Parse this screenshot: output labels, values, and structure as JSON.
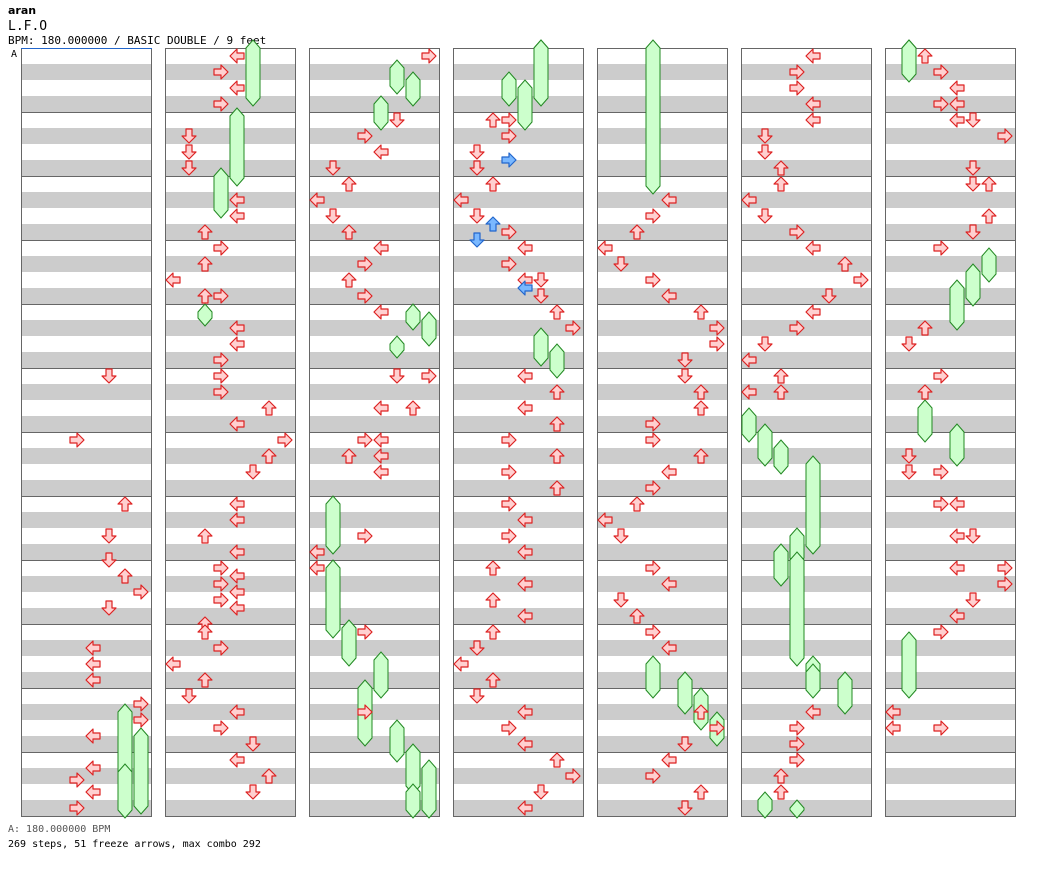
{
  "header": {
    "author": "aran",
    "title": "L.F.O",
    "info": "BPM: 180.000000 / BASIC DOUBLE / 9 feet",
    "marker": "A"
  },
  "footer": {
    "bpm_line": "A: 180.000000 BPM",
    "stats": "269 steps, 51 freeze arrows, max combo 292"
  },
  "colors": {
    "band_gray": "#cccccc",
    "arrow_fill": "#ffd0d0",
    "arrow_stroke": "#dd2222",
    "blue_fill": "#7ab8ff",
    "blue_stroke": "#2266cc",
    "freeze_fill": "#ccffcc",
    "freeze_stroke": "#228822",
    "bpm_line": "#2266cc"
  },
  "chart_data": {
    "type": "step_chart",
    "columns": 7,
    "measures_per_column": 12,
    "lanes": [
      "P1-left",
      "P1-down",
      "P1-up",
      "P1-right",
      "P2-left",
      "P2-down",
      "P2-up",
      "P2-right"
    ],
    "freezes": [
      [
        0,
        41.5,
        46.25
      ],
      [
        0,
        43,
        47.75
      ],
      [
        0,
        45.25,
        48
      ],
      [
        1,
        0,
        3.5
      ],
      [
        1,
        4.25,
        8.5
      ],
      [
        1,
        8,
        10.5
      ],
      [
        1,
        16.5,
        17.25
      ],
      [
        2,
        1.25,
        2.75
      ],
      [
        2,
        2,
        3.5
      ],
      [
        2,
        3.5,
        5
      ],
      [
        2,
        16.5,
        17.5
      ],
      [
        2,
        17,
        18.5
      ],
      [
        2,
        18.5,
        19.25
      ],
      [
        2,
        28.5,
        31.5
      ],
      [
        2,
        32.5,
        36.75
      ],
      [
        2,
        36.25,
        38.5
      ],
      [
        2,
        38.25,
        40.5
      ],
      [
        2,
        40,
        43.5
      ],
      [
        2,
        42.5,
        44.5
      ],
      [
        2,
        44,
        46.5
      ],
      [
        2,
        45,
        48
      ],
      [
        2,
        46.5,
        48
      ],
      [
        3,
        0,
        1
      ],
      [
        3,
        0,
        3.5
      ],
      [
        3,
        2,
        3.5
      ],
      [
        3,
        2.5,
        5
      ],
      [
        3,
        18,
        19.75
      ],
      [
        3,
        19,
        20.5
      ],
      [
        4,
        0,
        9
      ],
      [
        4,
        38.5,
        40.5
      ],
      [
        4,
        39.5,
        41.5
      ],
      [
        4,
        40.5,
        42.5
      ],
      [
        4,
        42,
        43.5
      ],
      [
        5,
        23,
        24.5
      ],
      [
        5,
        24,
        26
      ],
      [
        5,
        25,
        26.5
      ],
      [
        5,
        26,
        31.5
      ],
      [
        5,
        30.5,
        32.25
      ],
      [
        5,
        31.5,
        33.5
      ],
      [
        5,
        32,
        38.5
      ],
      [
        5,
        38.5,
        40
      ],
      [
        5,
        39,
        40.5
      ],
      [
        5,
        39.5,
        41.5
      ],
      [
        5,
        47,
        48
      ],
      [
        5,
        47.5,
        48
      ],
      [
        6,
        0,
        1
      ],
      [
        6,
        0,
        2
      ],
      [
        6,
        13,
        14.5
      ],
      [
        6,
        14,
        16
      ],
      [
        6,
        15,
        17.5
      ],
      [
        6,
        22.5,
        24.5
      ],
      [
        6,
        24,
        26
      ],
      [
        6,
        37,
        40.5
      ]
    ],
    "total_steps": 269,
    "total_freezes": 51,
    "max_combo": 292,
    "bpm": 180
  }
}
